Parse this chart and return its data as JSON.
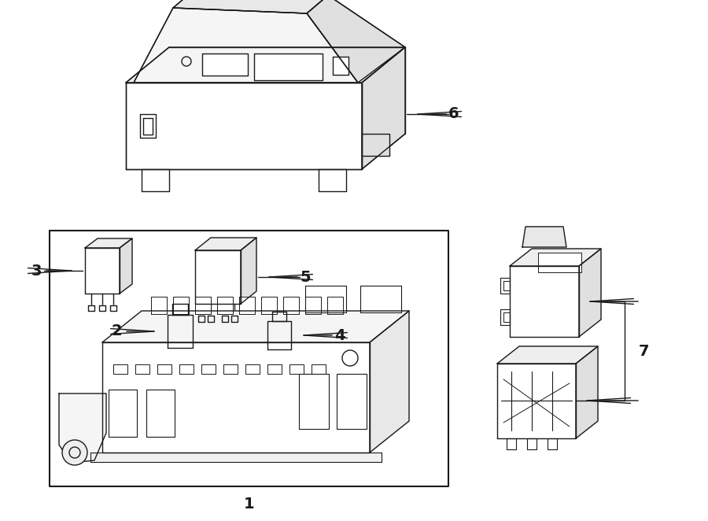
{
  "bg_color": "#ffffff",
  "line_color": "#1a1a1a",
  "lw": 1.0,
  "fig_width": 9.0,
  "fig_height": 6.62,
  "dpi": 100
}
